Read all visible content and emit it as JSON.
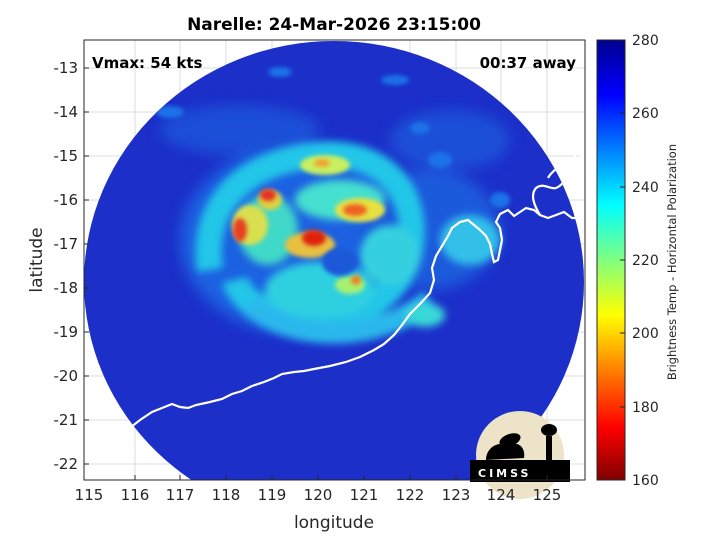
{
  "title": "Narelle: 24-Mar-2026 23:15:00",
  "annotations": {
    "vmax": "Vmax: 54 kts",
    "time_away": "00:37 away"
  },
  "axes": {
    "xlabel": "longitude",
    "ylabel": "latitude",
    "xticks": [
      "115",
      "116",
      "117",
      "118",
      "119",
      "120",
      "121",
      "122",
      "123",
      "124",
      "125"
    ],
    "yticks": [
      "-13",
      "-14",
      "-15",
      "-16",
      "-17",
      "-18",
      "-19",
      "-20",
      "-21",
      "-22"
    ],
    "xlim": [
      115,
      125.3
    ],
    "ylim": [
      -22.3,
      -12.3
    ]
  },
  "colorbar": {
    "label": "Brightness Temp - Horizontal Polarization",
    "ticks": [
      "280",
      "260",
      "240",
      "220",
      "200",
      "180",
      "160"
    ],
    "range": [
      160,
      280
    ],
    "colors": [
      "#800000",
      "#ff0000",
      "#ff8000",
      "#ffff00",
      "#80ff80",
      "#00ffff",
      "#0080ff",
      "#0000ff",
      "#00008f"
    ]
  },
  "logo": {
    "text": "CIMSS"
  },
  "image": {
    "background_color": "#1c2fc9",
    "coastline_color": "#ffffff",
    "storm_center_lon": 119.8,
    "storm_center_lat": -17.3
  }
}
